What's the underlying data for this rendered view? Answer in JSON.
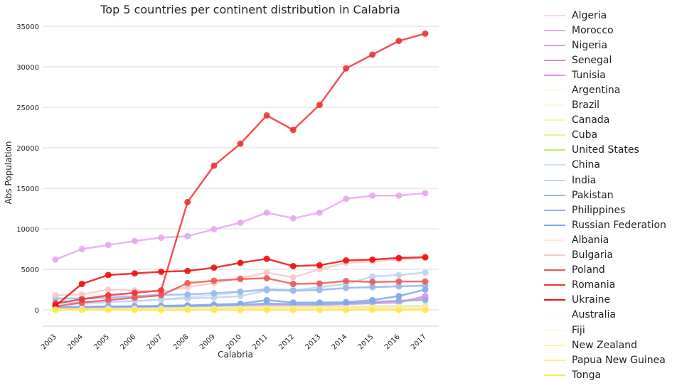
{
  "chart_data": {
    "type": "line",
    "title": "Top 5 countries per continent distribution in Calabria",
    "xlabel": "Calabria",
    "ylabel": "Abs Population",
    "categories": [
      "2003",
      "2004",
      "2005",
      "2006",
      "2007",
      "2008",
      "2009",
      "2010",
      "2011",
      "2012",
      "2013",
      "2014",
      "2015",
      "2016",
      "2017"
    ],
    "ylim": [
      -2000,
      36000
    ],
    "yticks": [
      0,
      5000,
      10000,
      15000,
      20000,
      25000,
      30000,
      35000
    ],
    "grid": "horizontal",
    "legend_position": "right",
    "series": [
      {
        "name": "Algeria",
        "color": "#f2d6ef",
        "values": [
          50,
          60,
          70,
          80,
          90,
          100,
          110,
          120,
          140,
          150,
          160,
          170,
          180,
          190,
          200
        ]
      },
      {
        "name": "Morocco",
        "color": "#e6a8ec",
        "values": [
          6200,
          7500,
          8000,
          8500,
          8900,
          9100,
          9950,
          10750,
          12000,
          11300,
          12000,
          13700,
          14100,
          14100,
          14400
        ]
      },
      {
        "name": "Nigeria",
        "color": "#dd9ae6",
        "values": [
          150,
          200,
          260,
          320,
          400,
          480,
          540,
          600,
          700,
          680,
          700,
          800,
          900,
          1100,
          1400
        ]
      },
      {
        "name": "Senegal",
        "color": "#d888d8",
        "values": [
          80,
          100,
          130,
          150,
          180,
          210,
          240,
          270,
          300,
          300,
          320,
          360,
          400,
          430,
          470
        ]
      },
      {
        "name": "Tunisia",
        "color": "#e090e8",
        "values": [
          300,
          350,
          400,
          430,
          460,
          490,
          520,
          560,
          600,
          580,
          600,
          700,
          800,
          900,
          1700
        ]
      },
      {
        "name": "Argentina",
        "color": "#fbfde4",
        "values": [
          100,
          120,
          140,
          150,
          160,
          170,
          180,
          190,
          200,
          190,
          180,
          170,
          160,
          150,
          150
        ]
      },
      {
        "name": "Brazil",
        "color": "#f6fbcf",
        "values": [
          200,
          220,
          240,
          260,
          280,
          300,
          320,
          340,
          360,
          350,
          360,
          380,
          400,
          420,
          430
        ]
      },
      {
        "name": "Canada",
        "color": "#f0f8b8",
        "values": [
          30,
          30,
          30,
          30,
          30,
          30,
          30,
          30,
          30,
          30,
          30,
          30,
          30,
          30,
          30
        ]
      },
      {
        "name": "Cuba",
        "color": "#e3f39a",
        "values": [
          150,
          180,
          210,
          240,
          270,
          300,
          330,
          360,
          400,
          390,
          400,
          420,
          450,
          470,
          500
        ]
      },
      {
        "name": "United States",
        "color": "#b8ec5c",
        "values": [
          60,
          60,
          60,
          60,
          60,
          60,
          60,
          60,
          60,
          60,
          60,
          60,
          60,
          60,
          60
        ]
      },
      {
        "name": "China",
        "color": "#cfe0f6",
        "values": [
          500,
          700,
          900,
          1100,
          1200,
          1600,
          1800,
          2200,
          2600,
          2500,
          2500,
          2700,
          2800,
          2900,
          2950
        ]
      },
      {
        "name": "India",
        "color": "#bcd3f2",
        "values": [
          800,
          900,
          1000,
          1100,
          1300,
          1400,
          1500,
          1700,
          2400,
          2400,
          2800,
          3200,
          4100,
          4300,
          4600
        ]
      },
      {
        "name": "Pakistan",
        "color": "#9ab8ee",
        "values": [
          1400,
          1400,
          1500,
          1700,
          1850,
          1900,
          2050,
          2250,
          2500,
          2350,
          2450,
          2700,
          2800,
          2900,
          3000
        ]
      },
      {
        "name": "Philippines",
        "color": "#8fb0e8",
        "values": [
          200,
          250,
          300,
          350,
          400,
          450,
          500,
          600,
          800,
          700,
          700,
          800,
          1000,
          1100,
          1200
        ]
      },
      {
        "name": "Russian Federation",
        "color": "#80a6ec",
        "values": [
          300,
          350,
          400,
          450,
          500,
          550,
          650,
          750,
          1200,
          900,
          900,
          950,
          1200,
          1700,
          2500
        ]
      },
      {
        "name": "Albania",
        "color": "#fbe6e6",
        "values": [
          100,
          110,
          120,
          130,
          140,
          150,
          160,
          170,
          180,
          170,
          180,
          190,
          200,
          210,
          220
        ]
      },
      {
        "name": "Bulgaria",
        "color": "#f8c8c8",
        "values": [
          1800,
          1900,
          2500,
          2400,
          2200,
          2800,
          3300,
          3900,
          4600,
          4000,
          5000,
          5800,
          6000,
          6200,
          6400
        ]
      },
      {
        "name": "Poland",
        "color": "#ee5858",
        "values": [
          400,
          900,
          1200,
          1500,
          1800,
          3300,
          3600,
          3800,
          3900,
          3200,
          3250,
          3550,
          3450,
          3500,
          3500
        ]
      },
      {
        "name": "Romania",
        "color": "#f03434",
        "values": [
          800,
          1300,
          1800,
          2100,
          2400,
          13300,
          17800,
          20500,
          24000,
          22200,
          25300,
          29800,
          31500,
          33200,
          34100
        ]
      },
      {
        "name": "Ukraine",
        "color": "#ee1010",
        "values": [
          500,
          3200,
          4300,
          4500,
          4700,
          4800,
          5200,
          5800,
          6300,
          5400,
          5500,
          6100,
          6200,
          6400,
          6500
        ]
      },
      {
        "name": "Australia",
        "color": "#fffdf0",
        "values": [
          20,
          20,
          20,
          20,
          20,
          20,
          20,
          20,
          20,
          20,
          20,
          20,
          20,
          20,
          20
        ]
      },
      {
        "name": "Fiji",
        "color": "#fffbd8",
        "values": [
          15,
          15,
          15,
          15,
          15,
          15,
          15,
          15,
          15,
          15,
          15,
          15,
          15,
          15,
          15
        ]
      },
      {
        "name": "New Zealand",
        "color": "#fff3a8",
        "values": [
          10,
          10,
          10,
          10,
          10,
          10,
          10,
          10,
          10,
          10,
          10,
          10,
          10,
          10,
          10
        ]
      },
      {
        "name": "Papua New Guinea",
        "color": "#fff080",
        "values": [
          5,
          5,
          5,
          5,
          5,
          5,
          5,
          5,
          5,
          5,
          5,
          5,
          5,
          5,
          5
        ]
      },
      {
        "name": "Tonga",
        "color": "#ffe74a",
        "values": [
          0,
          0,
          0,
          0,
          0,
          0,
          0,
          0,
          0,
          0,
          0,
          0,
          0,
          0,
          0
        ]
      }
    ]
  }
}
